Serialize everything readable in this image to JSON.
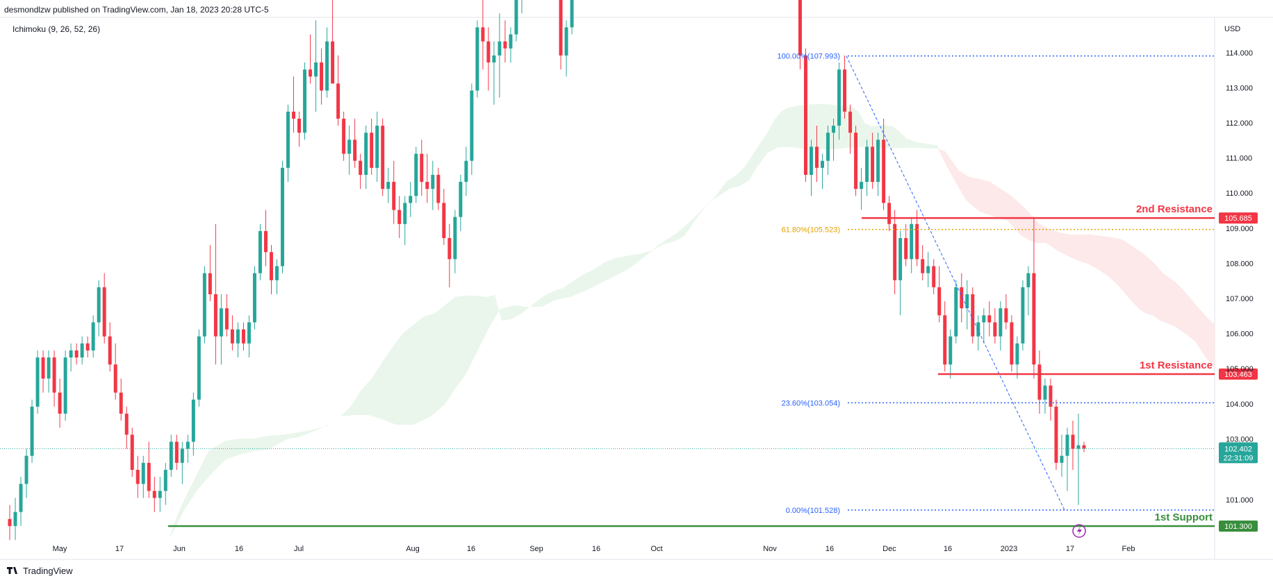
{
  "header": {
    "publisher": "desmondlzw published on TradingView.com, Jan 18, 2023 20:28 UTC-5",
    "indicator": "Ichimoku (9, 26, 52, 26)",
    "currency": "USD",
    "logo_text": "TradingView"
  },
  "chart_data": {
    "type": "candlestick",
    "y_ticks": [
      "114.000",
      "113.000",
      "112.000",
      "111.000",
      "110.000",
      "109.000",
      "108.000",
      "107.000",
      "106.000",
      "105.000",
      "104.000",
      "103.000",
      "101.000"
    ],
    "x_ticks": [
      "May",
      "17",
      "Jun",
      "16",
      "Jul",
      "Aug",
      "16",
      "Sep",
      "16",
      "Oct",
      "Nov",
      "16",
      "Dec",
      "16",
      "2023",
      "17",
      "Feb"
    ],
    "ylim": [
      100.6,
      114.8
    ],
    "fib_levels": [
      {
        "label": "100.00%(107.993)",
        "price": 107.993
      },
      {
        "label": "61.80%(105.523)",
        "price": 105.523
      },
      {
        "label": "23.60%(103.054)",
        "price": 103.054
      },
      {
        "label": "0.00%(101.528)",
        "price": 101.528
      }
    ],
    "levels": [
      {
        "name": "2nd Resistance",
        "price_label": "105.685",
        "price": 105.685,
        "color": "#f23645"
      },
      {
        "name": "1st Resistance",
        "price_label": "103.463",
        "price": 103.463,
        "color": "#f23645"
      },
      {
        "name": "1st Support",
        "price_label": "101.300",
        "price": 101.3,
        "color": "#388e3c"
      }
    ],
    "last_price": {
      "price_label": "102.402",
      "countdown": "22:31:09",
      "price": 102.402
    },
    "colors": {
      "up": "#26a69a",
      "down": "#f23645",
      "fib_blue": "#2962ff",
      "fib_gold": "#e6a000",
      "cloud_green": "#e8f5e9",
      "cloud_red": "#fde8e8"
    }
  }
}
